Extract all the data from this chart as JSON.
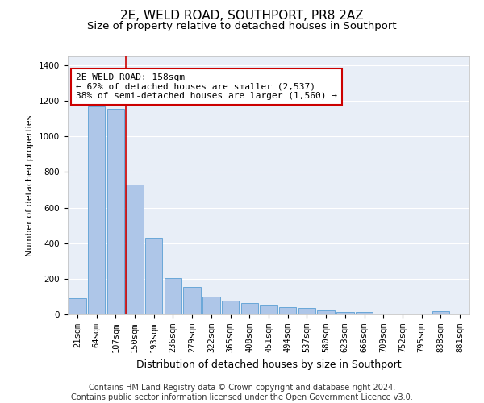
{
  "title": "2E, WELD ROAD, SOUTHPORT, PR8 2AZ",
  "subtitle": "Size of property relative to detached houses in Southport",
  "xlabel": "Distribution of detached houses by size in Southport",
  "ylabel": "Number of detached properties",
  "categories": [
    "21sqm",
    "64sqm",
    "107sqm",
    "150sqm",
    "193sqm",
    "236sqm",
    "279sqm",
    "322sqm",
    "365sqm",
    "408sqm",
    "451sqm",
    "494sqm",
    "537sqm",
    "580sqm",
    "623sqm",
    "666sqm",
    "709sqm",
    "752sqm",
    "795sqm",
    "838sqm",
    "881sqm"
  ],
  "values": [
    90,
    1170,
    1155,
    730,
    430,
    205,
    155,
    100,
    75,
    65,
    50,
    40,
    35,
    22,
    15,
    15,
    5,
    0,
    0,
    20,
    0
  ],
  "bar_color": "#aec6e8",
  "bar_edge_color": "#5a9fd4",
  "background_color": "#e8eef7",
  "annotation_box_text": "2E WELD ROAD: 158sqm\n← 62% of detached houses are smaller (2,537)\n38% of semi-detached houses are larger (1,560) →",
  "annotation_box_color": "#ffffff",
  "annotation_box_edge_color": "#cc0000",
  "vline_x": 2.55,
  "vline_color": "#cc0000",
  "ylim": [
    0,
    1450
  ],
  "yticks": [
    0,
    200,
    400,
    600,
    800,
    1000,
    1200,
    1400
  ],
  "grid_color": "#ffffff",
  "footer_line1": "Contains HM Land Registry data © Crown copyright and database right 2024.",
  "footer_line2": "Contains public sector information licensed under the Open Government Licence v3.0.",
  "title_fontsize": 11,
  "subtitle_fontsize": 9.5,
  "annotation_fontsize": 8,
  "tick_fontsize": 7.5,
  "ylabel_fontsize": 8,
  "xlabel_fontsize": 9,
  "footer_fontsize": 7
}
